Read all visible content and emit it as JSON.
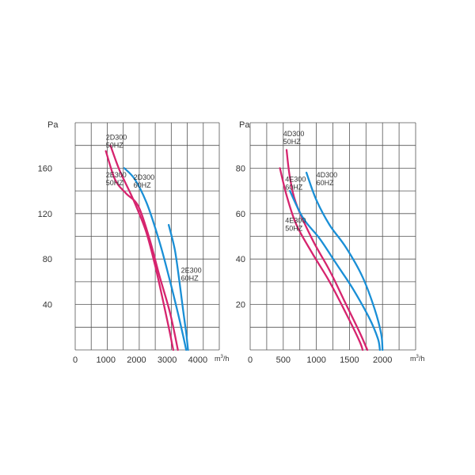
{
  "chart_data": [
    {
      "type": "line",
      "ylabel": "Pa",
      "xlabel_prefix": "m",
      "xlabel_sup": "3",
      "xlabel_suffix": "/h",
      "xlim": [
        0,
        4700
      ],
      "ylim": [
        0,
        200
      ],
      "x_ticks": [
        0,
        1000,
        2000,
        3000,
        4000
      ],
      "x_tick_labels": [
        "0",
        "1000",
        "2000",
        "3000",
        "4000"
      ],
      "y_ticks": [
        40,
        80,
        120,
        160
      ],
      "y_tick_labels": [
        "40",
        "80",
        "120",
        "160"
      ],
      "grid": true,
      "series": [
        {
          "name": "2D300 50HZ",
          "color": "#d6246e",
          "points": [
            [
              1150,
              180
            ],
            [
              1450,
              158
            ],
            [
              1900,
              132
            ],
            [
              2300,
              105
            ],
            [
              2600,
              75
            ],
            [
              2850,
              45
            ],
            [
              3050,
              20
            ],
            [
              3200,
              0
            ]
          ]
        },
        {
          "name": "2E300 50HZ",
          "color": "#d6246e",
          "points": [
            [
              1000,
              175
            ],
            [
              1300,
              150
            ],
            [
              1650,
              138
            ],
            [
              2050,
              127
            ],
            [
              2400,
              100
            ],
            [
              2750,
              65
            ],
            [
              3100,
              32
            ],
            [
              3350,
              0
            ]
          ]
        },
        {
          "name": "2D300 60HZ",
          "color": "#1a8fd6",
          "points": [
            [
              1600,
              160
            ],
            [
              1950,
              150
            ],
            [
              2350,
              128
            ],
            [
              2750,
              95
            ],
            [
              3050,
              65
            ],
            [
              3300,
              38
            ],
            [
              3500,
              15
            ],
            [
              3620,
              0
            ]
          ]
        },
        {
          "name": "2E300 60HZ",
          "color": "#1a8fd6",
          "points": [
            [
              3050,
              110
            ],
            [
              3250,
              88
            ],
            [
              3400,
              60
            ],
            [
              3520,
              35
            ],
            [
              3620,
              15
            ],
            [
              3680,
              0
            ]
          ]
        }
      ],
      "curve_labels": [
        {
          "lines": [
            "2D300",
            "50HZ"
          ],
          "at": [
            1000,
            185
          ]
        },
        {
          "lines": [
            "2E300",
            "50HZ"
          ],
          "at": [
            1000,
            152
          ]
        },
        {
          "lines": [
            "2D300",
            "60HZ"
          ],
          "at": [
            1900,
            150
          ]
        },
        {
          "lines": [
            "2E300",
            "60HZ"
          ],
          "at": [
            3450,
            68
          ]
        }
      ]
    },
    {
      "type": "line",
      "ylabel": "Pa",
      "xlabel_prefix": "m",
      "xlabel_sup": "3",
      "xlabel_suffix": "/h",
      "xlim": [
        0,
        2500
      ],
      "ylim": [
        0,
        100
      ],
      "x_ticks": [
        0,
        500,
        1000,
        1500,
        2000
      ],
      "x_tick_labels": [
        "0",
        "500",
        "1000",
        "1500",
        "2000"
      ],
      "y_ticks": [
        20,
        40,
        60,
        80
      ],
      "y_tick_labels": [
        "20",
        "40",
        "60",
        "80"
      ],
      "grid": true,
      "series": [
        {
          "name": "4E300 50HZ",
          "color": "#d6246e",
          "points": [
            [
              450,
              80
            ],
            [
              550,
              68
            ],
            [
              700,
              55
            ],
            [
              950,
              42
            ],
            [
              1200,
              30
            ],
            [
              1450,
              16
            ],
            [
              1650,
              4
            ],
            [
              1700,
              0
            ]
          ]
        },
        {
          "name": "4D300 50HZ",
          "color": "#d6246e",
          "points": [
            [
              550,
              88
            ],
            [
              600,
              76
            ],
            [
              700,
              64
            ],
            [
              950,
              48
            ],
            [
              1200,
              35
            ],
            [
              1450,
              20
            ],
            [
              1650,
              8
            ],
            [
              1770,
              0
            ]
          ]
        },
        {
          "name": "4D300 60HZ",
          "color": "#1a8fd6",
          "points": [
            [
              600,
              70
            ],
            [
              800,
              58
            ],
            [
              1050,
              49
            ],
            [
              1300,
              38
            ],
            [
              1550,
              27
            ],
            [
              1800,
              14
            ],
            [
              1930,
              5
            ],
            [
              1960,
              0
            ]
          ]
        },
        {
          "name": "4E300 60HZ",
          "color": "#1a8fd6",
          "points": [
            [
              850,
              78
            ],
            [
              1000,
              66
            ],
            [
              1200,
              55
            ],
            [
              1450,
              45
            ],
            [
              1700,
              32
            ],
            [
              1880,
              18
            ],
            [
              1980,
              7
            ],
            [
              2000,
              0
            ]
          ]
        }
      ],
      "curve_labels": [
        {
          "lines": [
            "4D300",
            "50HZ"
          ],
          "at": [
            500,
            94
          ]
        },
        {
          "lines": [
            "4E300",
            "60HZ"
          ],
          "at": [
            530,
            74
          ]
        },
        {
          "lines": [
            "4D300",
            "60HZ"
          ],
          "at": [
            1000,
            76
          ]
        },
        {
          "lines": [
            "4E300",
            "50HZ"
          ],
          "at": [
            530,
            56
          ]
        }
      ]
    }
  ]
}
